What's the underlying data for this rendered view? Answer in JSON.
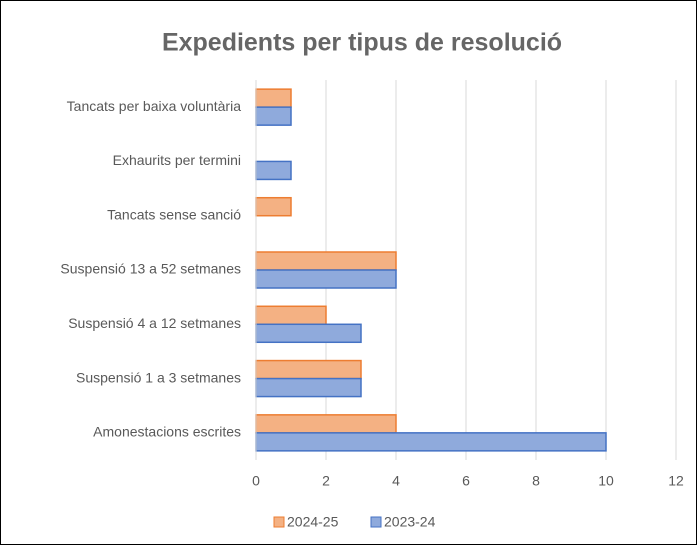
{
  "chart_data": {
    "type": "barh",
    "title": "Expedients per tipus de resolució",
    "categories": [
      "Tancats per baixa voluntària",
      "Exhaurits per termini",
      "Tancats sense sanció",
      "Suspensió 13 a 52 setmanes",
      "Suspensió 4 a 12 setmanes",
      "Suspensió 1 a 3 setmanes",
      "Amonestacions escrites"
    ],
    "series": [
      {
        "name": "2024-25",
        "color": "#f4b183",
        "edgecolor": "#ed7d31",
        "values": [
          1,
          0,
          1,
          4,
          2,
          3,
          4
        ]
      },
      {
        "name": "2023-24",
        "color": "#8faadc",
        "edgecolor": "#4472c4",
        "values": [
          1,
          1,
          0,
          4,
          3,
          3,
          10
        ]
      }
    ],
    "xlim": [
      0,
      12
    ],
    "xticks": [
      0,
      2,
      4,
      6,
      8,
      10,
      12
    ],
    "grid": true,
    "legend": "bottom"
  }
}
